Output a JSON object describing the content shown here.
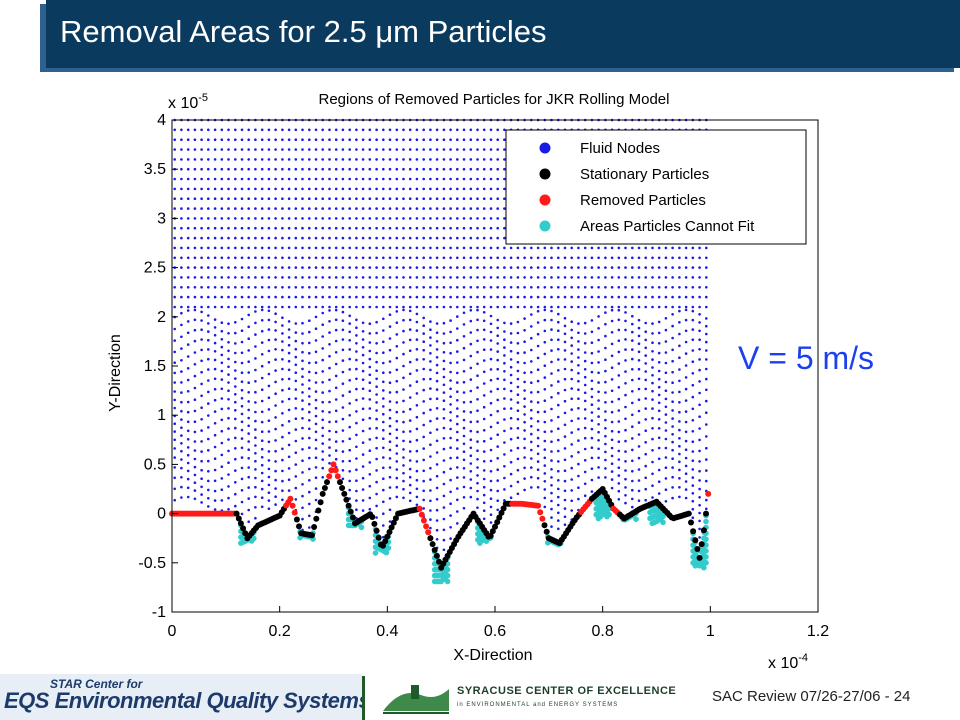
{
  "slide": {
    "title": "Removal Areas for 2.5 μm Particles",
    "annotation": "V = 5 m/s",
    "footer": "SAC Review 07/26-27/06 - 24"
  },
  "logos": {
    "eqs_small": "STAR Center for",
    "eqs_text": "EQS Environmental Quality Systems",
    "syracuse_title": "SYRACUSE CENTER OF EXCELLENCE",
    "syracuse_sub": "in ENVIRONMENTAL and ENERGY SYSTEMS"
  },
  "chart_data": {
    "type": "scatter",
    "title": "Regions of Removed Particles for JKR Rolling Model",
    "xlabel": "X-Direction",
    "ylabel": "Y-Direction",
    "x_multiplier": "x 10^-4",
    "y_multiplier": "x 10^-5",
    "xlim": [
      0,
      1.2
    ],
    "ylim": [
      -1,
      4
    ],
    "x_ticks": [
      "0",
      "0.2",
      "0.4",
      "0.6",
      "0.8",
      "1",
      "1.2"
    ],
    "y_ticks": [
      "-1",
      "-0.5",
      "0",
      "0.5",
      "1",
      "1.5",
      "2",
      "2.5",
      "3",
      "3.5",
      "4"
    ],
    "grid": false,
    "legend_position": "top-right",
    "colors": {
      "fluid": "#1a1ae6",
      "stationary": "#000000",
      "removed": "#ff1a1a",
      "cannot_fit": "#33cccc"
    },
    "series": [
      {
        "name": "Fluid Nodes",
        "color": "#1a1ae6"
      },
      {
        "name": "Stationary Particles",
        "color": "#000000"
      },
      {
        "name": "Removed Particles",
        "color": "#ff1a1a"
      },
      {
        "name": "Areas Particles Cannot Fit",
        "color": "#33cccc"
      }
    ],
    "surface_profile": {
      "x": [
        0,
        0.12,
        0.14,
        0.16,
        0.2,
        0.22,
        0.24,
        0.26,
        0.28,
        0.3,
        0.32,
        0.34,
        0.37,
        0.39,
        0.42,
        0.46,
        0.5,
        0.53,
        0.56,
        0.59,
        0.62,
        0.65,
        0.68,
        0.7,
        0.72,
        0.75,
        0.78,
        0.8,
        0.82,
        0.84,
        0.87,
        0.9,
        0.93,
        0.96,
        0.98,
        0.99,
        1.0
      ],
      "y": [
        0.0,
        0.0,
        -0.25,
        -0.12,
        -0.02,
        0.15,
        -0.2,
        -0.22,
        0.2,
        0.5,
        0.2,
        -0.1,
        0.0,
        -0.35,
        0.0,
        0.05,
        -0.55,
        -0.25,
        0.0,
        -0.25,
        0.1,
        0.1,
        0.08,
        -0.25,
        -0.3,
        -0.05,
        0.15,
        0.25,
        0.05,
        -0.05,
        0.05,
        0.12,
        -0.05,
        0.0,
        -0.45,
        -0.1,
        0.4
      ]
    },
    "removed_ranges": [
      [
        0,
        0.12
      ],
      [
        0.21,
        0.23
      ],
      [
        0.29,
        0.31
      ],
      [
        0.46,
        0.48
      ],
      [
        0.63,
        0.69
      ],
      [
        0.76,
        0.78
      ],
      [
        0.82,
        0.83
      ],
      [
        0.995,
        1.0
      ]
    ],
    "cannot_fit_dips": [
      {
        "x": 0.14,
        "depth": -0.3
      },
      {
        "x": 0.25,
        "depth": -0.25
      },
      {
        "x": 0.34,
        "depth": -0.1
      },
      {
        "x": 0.39,
        "depth": -0.4
      },
      {
        "x": 0.5,
        "depth": -0.7
      },
      {
        "x": 0.58,
        "depth": -0.3
      },
      {
        "x": 0.71,
        "depth": -0.3
      },
      {
        "x": 0.8,
        "depth": -0.05
      },
      {
        "x": 0.85,
        "depth": -0.05
      },
      {
        "x": 0.9,
        "depth": -0.1
      },
      {
        "x": 0.98,
        "depth": -0.55
      }
    ]
  }
}
